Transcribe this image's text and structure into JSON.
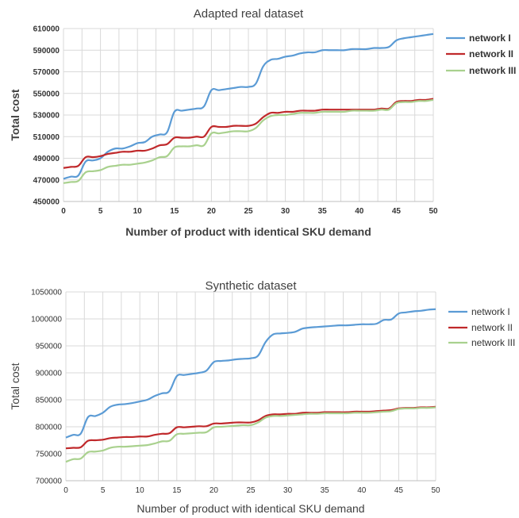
{
  "chart_data": [
    {
      "type": "line",
      "title": "Adapted real dataset",
      "xlabel": "Number of product with identical SKU demand",
      "ylabel": "Total cost",
      "xlim": [
        0,
        50
      ],
      "ylim": [
        450000,
        610000
      ],
      "xticks": [
        0,
        5,
        10,
        15,
        20,
        25,
        30,
        35,
        40,
        45,
        50
      ],
      "yticks": [
        450000,
        470000,
        490000,
        510000,
        530000,
        550000,
        570000,
        590000,
        610000
      ],
      "ytick_labels": [
        "450000",
        "470000",
        "490000",
        "510000",
        "530000",
        "550000",
        "570000",
        "590000",
        "610000"
      ],
      "xtick_labels": [
        "0",
        "5",
        "10",
        "15",
        "20",
        "25",
        "30",
        "35",
        "40",
        "45",
        "50"
      ],
      "grid": true,
      "legend": "right",
      "series": [
        {
          "name": "network I",
          "color": "#5b9bd5",
          "x": [
            0,
            1,
            2,
            3,
            4,
            5,
            6,
            7,
            8,
            9,
            10,
            11,
            12,
            13,
            14,
            15,
            16,
            17,
            18,
            19,
            20,
            21,
            22,
            23,
            24,
            25,
            26,
            27,
            28,
            29,
            30,
            31,
            32,
            33,
            34,
            35,
            36,
            37,
            38,
            39,
            40,
            41,
            42,
            43,
            44,
            45,
            46,
            47,
            48,
            49,
            50
          ],
          "values": [
            471000,
            473000,
            474000,
            487000,
            488000,
            490000,
            496000,
            499000,
            499000,
            501000,
            504000,
            505000,
            510000,
            512000,
            514000,
            533000,
            534000,
            535000,
            536000,
            538000,
            553000,
            553000,
            554000,
            555000,
            556000,
            556000,
            559000,
            575000,
            581000,
            582000,
            584000,
            585000,
            587000,
            588000,
            588000,
            590000,
            590000,
            590000,
            590000,
            591000,
            591000,
            591000,
            592000,
            592000,
            593000,
            599000,
            601000,
            602000,
            603000,
            604000,
            605000
          ]
        },
        {
          "name": "network II",
          "color": "#c0292b",
          "x": [
            0,
            1,
            2,
            3,
            4,
            5,
            6,
            7,
            8,
            9,
            10,
            11,
            12,
            13,
            14,
            15,
            16,
            17,
            18,
            19,
            20,
            21,
            22,
            23,
            24,
            25,
            26,
            27,
            28,
            29,
            30,
            31,
            32,
            33,
            34,
            35,
            36,
            37,
            38,
            39,
            40,
            41,
            42,
            43,
            44,
            45,
            46,
            47,
            48,
            49,
            50
          ],
          "values": [
            481000,
            482000,
            483000,
            491000,
            491000,
            492000,
            494000,
            495000,
            496000,
            496000,
            497000,
            497000,
            499000,
            502000,
            503000,
            509000,
            509000,
            509000,
            510000,
            510000,
            519000,
            519000,
            519000,
            520000,
            520000,
            520000,
            522000,
            528000,
            532000,
            532000,
            533000,
            533000,
            534000,
            534000,
            534000,
            535000,
            535000,
            535000,
            535000,
            535000,
            535000,
            535000,
            535000,
            536000,
            536000,
            542000,
            543000,
            543000,
            544000,
            544000,
            545000
          ]
        },
        {
          "name": "network III",
          "color": "#a9d18e",
          "x": [
            0,
            1,
            2,
            3,
            4,
            5,
            6,
            7,
            8,
            9,
            10,
            11,
            12,
            13,
            14,
            15,
            16,
            17,
            18,
            19,
            20,
            21,
            22,
            23,
            24,
            25,
            26,
            27,
            28,
            29,
            30,
            31,
            32,
            33,
            34,
            35,
            36,
            37,
            38,
            39,
            40,
            41,
            42,
            43,
            44,
            45,
            46,
            47,
            48,
            49,
            50
          ],
          "values": [
            467000,
            468000,
            469000,
            477000,
            478000,
            479000,
            482000,
            483000,
            484000,
            484000,
            485000,
            486000,
            488000,
            491000,
            492000,
            500000,
            501000,
            501000,
            502000,
            502000,
            513000,
            513000,
            514000,
            515000,
            515000,
            515000,
            518000,
            525000,
            529000,
            530000,
            530000,
            531000,
            532000,
            532000,
            532000,
            533000,
            533000,
            533000,
            533000,
            534000,
            534000,
            534000,
            534000,
            535000,
            535000,
            541000,
            542000,
            542000,
            543000,
            543000,
            544000
          ]
        }
      ]
    },
    {
      "type": "line",
      "title": "Synthetic dataset",
      "xlabel": "Number of product with identical SKU demand",
      "ylabel": "Total cost",
      "xlim": [
        0,
        50
      ],
      "ylim": [
        700000,
        1050000
      ],
      "xticks": [
        0,
        5,
        10,
        15,
        20,
        25,
        30,
        35,
        40,
        45,
        50
      ],
      "yticks": [
        700000,
        750000,
        800000,
        850000,
        900000,
        950000,
        1000000,
        1050000
      ],
      "ytick_labels": [
        "700000",
        "750000",
        "800000",
        "850000",
        "900000",
        "950000",
        "1000000",
        "1050000"
      ],
      "xtick_labels": [
        "0",
        "5",
        "10",
        "15",
        "20",
        "25",
        "30",
        "35",
        "40",
        "45",
        "50"
      ],
      "grid": true,
      "legend": "right",
      "series": [
        {
          "name": "network I",
          "color": "#5b9bd5",
          "x": [
            0,
            1,
            2,
            3,
            4,
            5,
            6,
            7,
            8,
            9,
            10,
            11,
            12,
            13,
            14,
            15,
            16,
            17,
            18,
            19,
            20,
            21,
            22,
            23,
            24,
            25,
            26,
            27,
            28,
            29,
            30,
            31,
            32,
            33,
            34,
            35,
            36,
            37,
            38,
            39,
            40,
            41,
            42,
            43,
            44,
            45,
            46,
            47,
            48,
            49,
            50
          ],
          "values": [
            780000,
            785000,
            787000,
            818000,
            820000,
            826000,
            837000,
            841000,
            842000,
            844000,
            847000,
            850000,
            857000,
            862000,
            866000,
            894000,
            896000,
            898000,
            900000,
            904000,
            920000,
            922000,
            923000,
            925000,
            926000,
            927000,
            932000,
            957000,
            971000,
            973000,
            974000,
            976000,
            982000,
            984000,
            985000,
            986000,
            987000,
            988000,
            988000,
            989000,
            990000,
            990000,
            991000,
            998000,
            999000,
            1010000,
            1012000,
            1014000,
            1015000,
            1017000,
            1018000
          ]
        },
        {
          "name": "network II",
          "color": "#c0292b",
          "x": [
            0,
            1,
            2,
            3,
            4,
            5,
            6,
            7,
            8,
            9,
            10,
            11,
            12,
            13,
            14,
            15,
            16,
            17,
            18,
            19,
            20,
            21,
            22,
            23,
            24,
            25,
            26,
            27,
            28,
            29,
            30,
            31,
            32,
            33,
            34,
            35,
            36,
            37,
            38,
            39,
            40,
            41,
            42,
            43,
            44,
            45,
            46,
            47,
            48,
            49,
            50
          ],
          "values": [
            760000,
            761000,
            762000,
            774000,
            775000,
            776000,
            779000,
            780000,
            781000,
            781000,
            782000,
            782000,
            785000,
            787000,
            788000,
            799000,
            799000,
            800000,
            801000,
            801000,
            806000,
            806000,
            807000,
            808000,
            808000,
            808000,
            812000,
            820000,
            823000,
            823000,
            824000,
            824000,
            826000,
            826000,
            826000,
            827000,
            827000,
            827000,
            827000,
            828000,
            828000,
            828000,
            829000,
            830000,
            831000,
            834000,
            835000,
            835000,
            836000,
            836000,
            837000
          ]
        },
        {
          "name": "network III",
          "color": "#a9d18e",
          "x": [
            0,
            1,
            2,
            3,
            4,
            5,
            6,
            7,
            8,
            9,
            10,
            11,
            12,
            13,
            14,
            15,
            16,
            17,
            18,
            19,
            20,
            21,
            22,
            23,
            24,
            25,
            26,
            27,
            28,
            29,
            30,
            31,
            32,
            33,
            34,
            35,
            36,
            37,
            38,
            39,
            40,
            41,
            42,
            43,
            44,
            45,
            46,
            47,
            48,
            49,
            50
          ],
          "values": [
            735000,
            740000,
            741000,
            753000,
            754000,
            756000,
            761000,
            763000,
            763000,
            764000,
            765000,
            766000,
            769000,
            773000,
            774000,
            786000,
            787000,
            788000,
            789000,
            790000,
            799000,
            800000,
            801000,
            802000,
            803000,
            803000,
            808000,
            817000,
            820000,
            820000,
            821000,
            822000,
            823000,
            824000,
            824000,
            825000,
            825000,
            825000,
            825000,
            826000,
            826000,
            826000,
            827000,
            828000,
            829000,
            833000,
            834000,
            834000,
            835000,
            835000,
            836000
          ]
        }
      ]
    }
  ]
}
